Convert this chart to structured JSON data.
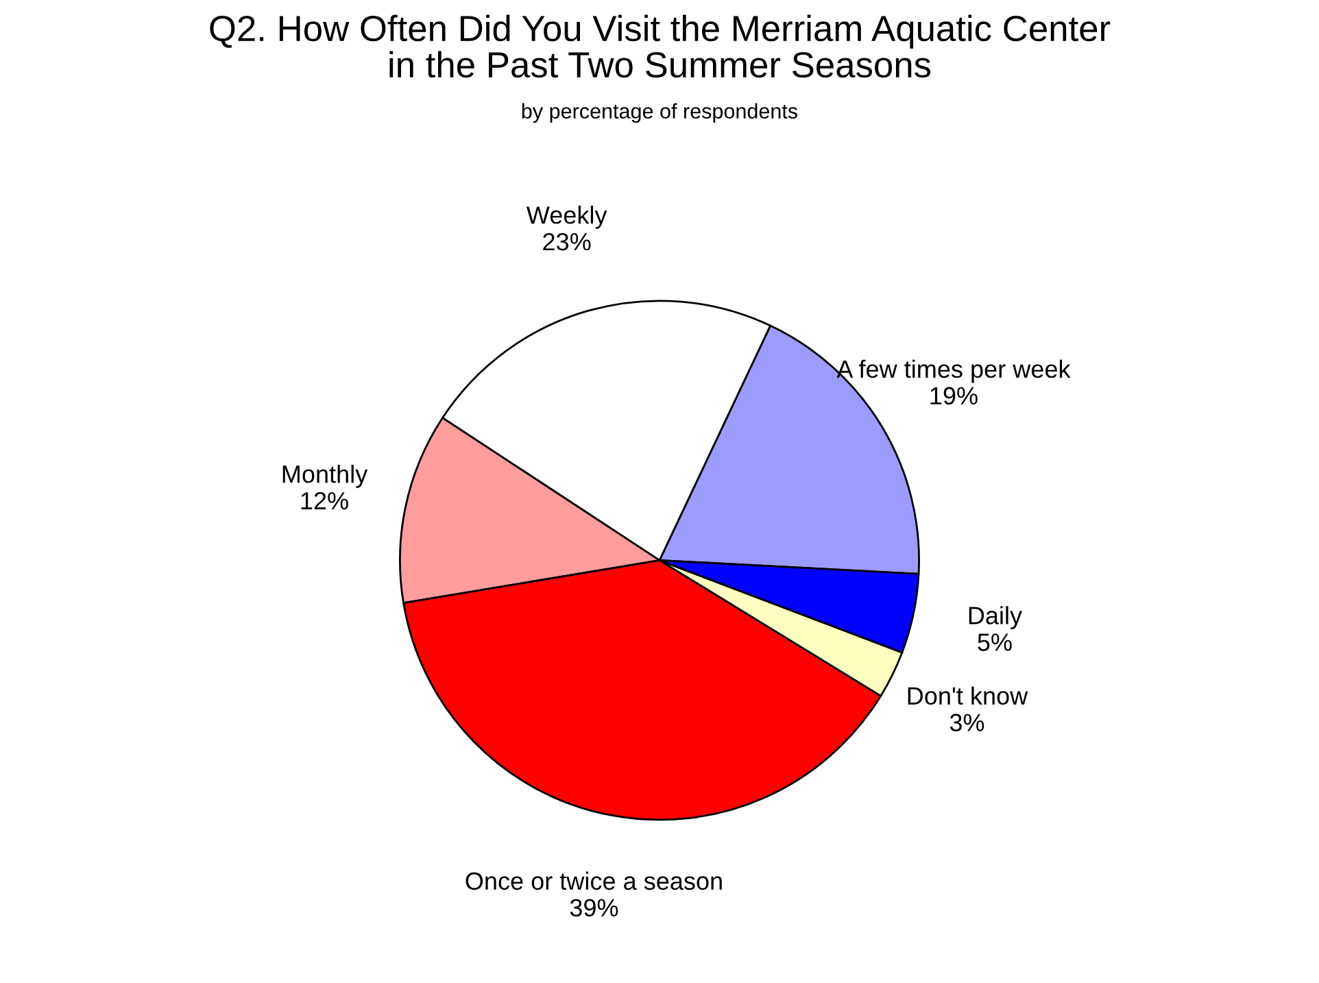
{
  "chart_data": {
    "type": "pie",
    "title": "Q2. How Often Did You Visit the Merriam Aquatic Center\nin the Past Two Summer Seasons",
    "subtitle": "by percentage of respondents",
    "categories": [
      "A few times per week",
      "Weekly",
      "Monthly",
      "Once or twice a season",
      "Don't know",
      "Daily"
    ],
    "values": [
      19,
      23,
      12,
      39,
      3,
      5
    ],
    "value_labels": [
      "19%",
      "23%",
      "12%",
      "39%",
      "3%",
      "5%"
    ],
    "colors": [
      "#9c9cff",
      "#ffffff",
      "#ff9c9c",
      "#ff0000",
      "#ffffc0",
      "#0000ff"
    ],
    "legend": false
  }
}
